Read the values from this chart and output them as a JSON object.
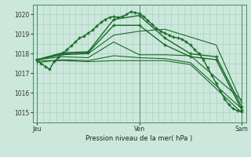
{
  "title": "Pression niveau de la mer( hPa )",
  "bg_color": "#cce8dc",
  "grid_color": "#aad0c0",
  "line_color": "#1a6b2a",
  "border_color": "#4a8a6a",
  "ylim": [
    1014.5,
    1020.5
  ],
  "yticks": [
    1015,
    1016,
    1017,
    1018,
    1019,
    1020
  ],
  "day_labels": [
    "Jeu",
    "Ven",
    "Sam"
  ],
  "day_positions": [
    0,
    48,
    96
  ],
  "xlim": [
    -2,
    98
  ],
  "ygrid_minor": [
    1014.5,
    1015,
    1015.5,
    1016,
    1016.5,
    1017,
    1017.5,
    1018,
    1018.5,
    1019,
    1019.5,
    1020,
    1020.5
  ],
  "xgrid_minor_count": 32,
  "series": [
    {
      "x": [
        0,
        2,
        4,
        6,
        8,
        10,
        12,
        14,
        16,
        18,
        20,
        22,
        24,
        26,
        28,
        30,
        32,
        34,
        36,
        38,
        40,
        42,
        44,
        46,
        48,
        50,
        52,
        54,
        56,
        58,
        60,
        62,
        64,
        66,
        68,
        70,
        72,
        74,
        76,
        78,
        80,
        82,
        84,
        86,
        88,
        90,
        92,
        94,
        96
      ],
      "y": [
        1017.7,
        1017.5,
        1017.35,
        1017.2,
        1017.6,
        1017.8,
        1018.0,
        1018.2,
        1018.4,
        1018.6,
        1018.8,
        1018.9,
        1019.05,
        1019.2,
        1019.4,
        1019.6,
        1019.75,
        1019.85,
        1019.9,
        1019.85,
        1019.9,
        1020.0,
        1020.15,
        1020.1,
        1020.05,
        1019.9,
        1019.7,
        1019.5,
        1019.3,
        1019.15,
        1019.05,
        1018.95,
        1018.85,
        1018.8,
        1018.75,
        1018.6,
        1018.45,
        1018.2,
        1018.0,
        1017.7,
        1017.3,
        1016.9,
        1016.5,
        1016.1,
        1015.7,
        1015.4,
        1015.2,
        1015.1,
        1015.05
      ],
      "marker": "+",
      "markersize": 3.0,
      "linewidth": 1.0
    },
    {
      "x": [
        0,
        12,
        24,
        36,
        48,
        60,
        72,
        84,
        96
      ],
      "y": [
        1017.7,
        1018.05,
        1018.1,
        1019.75,
        1019.95,
        1018.8,
        1018.0,
        1017.85,
        1015.3
      ],
      "marker": "+",
      "markersize": 3.5,
      "linewidth": 1.0
    },
    {
      "x": [
        0,
        12,
        24,
        36,
        48,
        60,
        72,
        84,
        96
      ],
      "y": [
        1017.7,
        1018.0,
        1018.05,
        1019.45,
        1019.45,
        1018.45,
        1017.85,
        1017.7,
        1015.15
      ],
      "marker": "+",
      "markersize": 3.5,
      "linewidth": 1.0
    },
    {
      "x": [
        0,
        12,
        24,
        36,
        48,
        60,
        72,
        84,
        96
      ],
      "y": [
        1017.7,
        1017.95,
        1018.0,
        1018.95,
        1019.15,
        1019.25,
        1018.85,
        1018.45,
        1015.5
      ],
      "marker": null,
      "markersize": 0,
      "linewidth": 0.8
    },
    {
      "x": [
        0,
        12,
        24,
        36,
        48,
        60,
        72,
        96
      ],
      "y": [
        1017.7,
        1017.85,
        1017.8,
        1018.6,
        1017.95,
        1017.95,
        1017.9,
        1015.65
      ],
      "marker": null,
      "markersize": 0,
      "linewidth": 0.8
    },
    {
      "x": [
        0,
        12,
        24,
        36,
        48,
        60,
        72,
        96
      ],
      "y": [
        1017.55,
        1017.7,
        1017.65,
        1017.9,
        1017.8,
        1017.75,
        1017.55,
        1015.2
      ],
      "marker": null,
      "markersize": 0,
      "linewidth": 0.8
    },
    {
      "x": [
        0,
        12,
        24,
        36,
        48,
        60,
        72,
        96
      ],
      "y": [
        1017.65,
        1017.65,
        1017.6,
        1017.65,
        1017.65,
        1017.65,
        1017.45,
        1015.0
      ],
      "marker": null,
      "markersize": 0,
      "linewidth": 0.8
    }
  ]
}
